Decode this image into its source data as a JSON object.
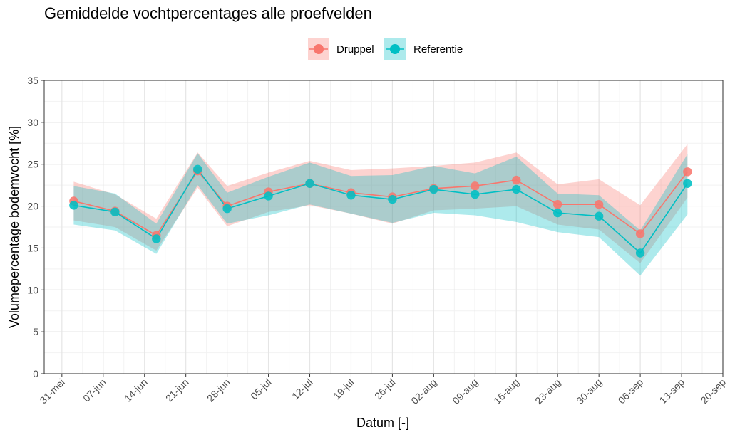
{
  "chart_data": {
    "type": "line",
    "title": "Gemiddelde vochtpercentages alle proefvelden",
    "xlabel": "Datum [-]",
    "ylabel": "Volumepercentage bodemvocht [%]",
    "ylim": [
      0,
      35
    ],
    "yticks": [
      0,
      5,
      10,
      15,
      20,
      25,
      30,
      35
    ],
    "xlim_days": [
      -3,
      112
    ],
    "xticks": [
      {
        "day": 0,
        "label": "31-mei"
      },
      {
        "day": 7,
        "label": "07-jun"
      },
      {
        "day": 14,
        "label": "14-jun"
      },
      {
        "day": 21,
        "label": "21-jun"
      },
      {
        "day": 28,
        "label": "28-jun"
      },
      {
        "day": 35,
        "label": "05-jul"
      },
      {
        "day": 42,
        "label": "12-jul"
      },
      {
        "day": 49,
        "label": "19-jul"
      },
      {
        "day": 56,
        "label": "26-jul"
      },
      {
        "day": 63,
        "label": "02-aug"
      },
      {
        "day": 70,
        "label": "09-aug"
      },
      {
        "day": 77,
        "label": "16-aug"
      },
      {
        "day": 84,
        "label": "23-aug"
      },
      {
        "day": 91,
        "label": "30-aug"
      },
      {
        "day": 98,
        "label": "06-sep"
      },
      {
        "day": 105,
        "label": "13-sep"
      },
      {
        "day": 112,
        "label": "20-sep"
      }
    ],
    "grid": true,
    "legend_position": "top",
    "x": [
      2,
      9,
      16,
      23,
      28,
      35,
      42,
      49,
      56,
      63,
      70,
      77,
      84,
      91,
      98,
      106
    ],
    "series": [
      {
        "name": "Druppel",
        "color": "#F8766D",
        "values": [
          20.6,
          19.4,
          16.5,
          24.2,
          20.0,
          21.7,
          22.7,
          21.6,
          21.1,
          22.1,
          22.4,
          23.1,
          20.2,
          20.2,
          16.7,
          24.1
        ],
        "lower": [
          18.3,
          17.5,
          14.7,
          22.2,
          17.6,
          19.3,
          20.1,
          19.1,
          17.9,
          19.5,
          19.7,
          20.0,
          17.8,
          17.2,
          13.2,
          21.0
        ],
        "upper": [
          22.9,
          21.4,
          18.5,
          26.4,
          22.4,
          24.0,
          25.4,
          24.3,
          24.5,
          24.8,
          25.2,
          26.4,
          22.6,
          23.2,
          20.1,
          27.4
        ]
      },
      {
        "name": "Referentie",
        "color": "#00BFC4",
        "values": [
          20.1,
          19.3,
          16.1,
          24.4,
          19.7,
          21.2,
          22.7,
          21.3,
          20.8,
          22.0,
          21.4,
          22.0,
          19.2,
          18.8,
          14.4,
          22.7
        ],
        "lower": [
          17.8,
          17.1,
          14.3,
          22.5,
          17.9,
          18.9,
          20.2,
          19.1,
          18.0,
          19.2,
          18.9,
          18.1,
          16.9,
          16.3,
          11.7,
          19.0
        ],
        "upper": [
          22.4,
          21.5,
          17.9,
          26.3,
          21.6,
          23.5,
          25.2,
          23.6,
          23.7,
          24.8,
          23.9,
          25.9,
          21.5,
          21.3,
          17.1,
          26.2
        ]
      }
    ]
  }
}
